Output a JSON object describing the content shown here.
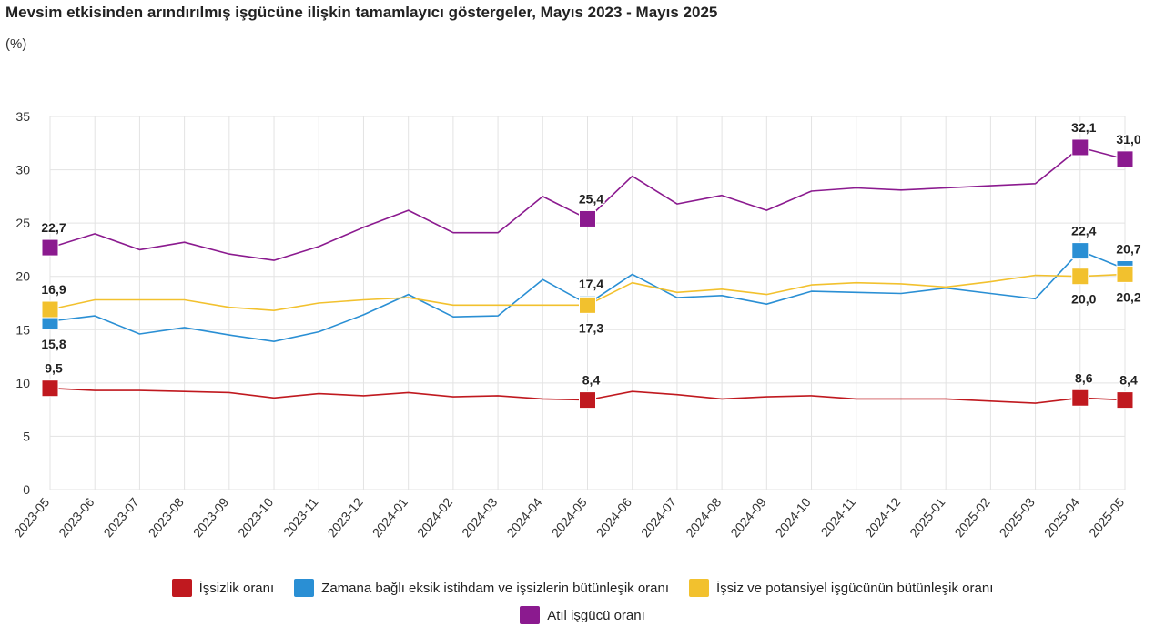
{
  "chart_data": {
    "type": "line",
    "title": "Mevsim etkisinden arındırılmış işgücüne ilişkin tamamlayıcı göstergeler, Mayıs 2023 - Mayıs 2025",
    "unit": "(%)",
    "ylim": [
      0,
      35
    ],
    "yticks": [
      "0",
      "5",
      "10",
      "15",
      "20",
      "25",
      "30",
      "35"
    ],
    "categories": [
      "2023-05",
      "2023-06",
      "2023-07",
      "2023-08",
      "2023-09",
      "2023-10",
      "2023-11",
      "2023-12",
      "2024-01",
      "2024-02",
      "2024-03",
      "2024-04",
      "2024-05",
      "2024-06",
      "2024-07",
      "2024-08",
      "2024-09",
      "2024-10",
      "2024-11",
      "2024-12",
      "2025-01",
      "2025-02",
      "2025-03",
      "2025-04",
      "2025-05"
    ],
    "series": [
      {
        "name": "İşsizlik oranı",
        "color": "#c0191f",
        "values": [
          9.5,
          9.3,
          9.3,
          9.2,
          9.1,
          8.6,
          9.0,
          8.8,
          9.1,
          8.7,
          8.8,
          8.5,
          8.4,
          9.2,
          8.9,
          8.5,
          8.7,
          8.8,
          8.5,
          8.5,
          8.5,
          8.3,
          8.1,
          8.6,
          8.4
        ],
        "labels": [
          {
            "i": 0,
            "text": "9,5",
            "pos": "above"
          },
          {
            "i": 12,
            "text": "8,4",
            "pos": "above"
          },
          {
            "i": 23,
            "text": "8,6",
            "pos": "above"
          },
          {
            "i": 24,
            "text": "8,4",
            "pos": "above"
          }
        ]
      },
      {
        "name": "Zamana bağlı eksik istihdam ve işsizlerin bütünleşik oranı",
        "color": "#2a8fd4",
        "values": [
          15.8,
          16.3,
          14.6,
          15.2,
          14.5,
          13.9,
          14.8,
          16.4,
          18.3,
          16.2,
          16.3,
          19.7,
          17.4,
          20.2,
          18.0,
          18.2,
          17.4,
          18.6,
          18.5,
          18.4,
          18.9,
          18.4,
          17.9,
          22.4,
          20.7
        ],
        "labels": [
          {
            "i": 0,
            "text": "15,8",
            "pos": "below"
          },
          {
            "i": 12,
            "text": "17,4",
            "pos": "above"
          },
          {
            "i": 23,
            "text": "22,4",
            "pos": "above"
          },
          {
            "i": 24,
            "text": "20,7",
            "pos": "above"
          }
        ]
      },
      {
        "name": "İşsiz ve potansiyel işgücünün bütünleşik oranı",
        "color": "#f2c12e",
        "values": [
          16.9,
          17.8,
          17.8,
          17.8,
          17.1,
          16.8,
          17.5,
          17.8,
          18.0,
          17.3,
          17.3,
          17.3,
          17.3,
          19.4,
          18.5,
          18.8,
          18.3,
          19.2,
          19.4,
          19.3,
          19.0,
          19.5,
          20.1,
          20.0,
          20.2
        ],
        "labels": [
          {
            "i": 0,
            "text": "16,9",
            "pos": "above"
          },
          {
            "i": 12,
            "text": "17,3",
            "pos": "below"
          },
          {
            "i": 23,
            "text": "20,0",
            "pos": "below"
          },
          {
            "i": 24,
            "text": "20,2",
            "pos": "below"
          }
        ]
      },
      {
        "name": "Atıl işgücü oranı",
        "color": "#8b1a8f",
        "values": [
          22.7,
          24.0,
          22.5,
          23.2,
          22.1,
          21.5,
          22.8,
          24.6,
          26.2,
          24.1,
          24.1,
          27.5,
          25.4,
          29.4,
          26.8,
          27.6,
          26.2,
          28.0,
          28.3,
          28.1,
          28.3,
          28.5,
          28.7,
          32.1,
          31.0
        ],
        "labels": [
          {
            "i": 0,
            "text": "22,7",
            "pos": "above"
          },
          {
            "i": 12,
            "text": "25,4",
            "pos": "above"
          },
          {
            "i": 23,
            "text": "32,1",
            "pos": "above"
          },
          {
            "i": 24,
            "text": "31,0",
            "pos": "above"
          }
        ]
      }
    ],
    "marked_indices": [
      0,
      12,
      23,
      24
    ]
  }
}
